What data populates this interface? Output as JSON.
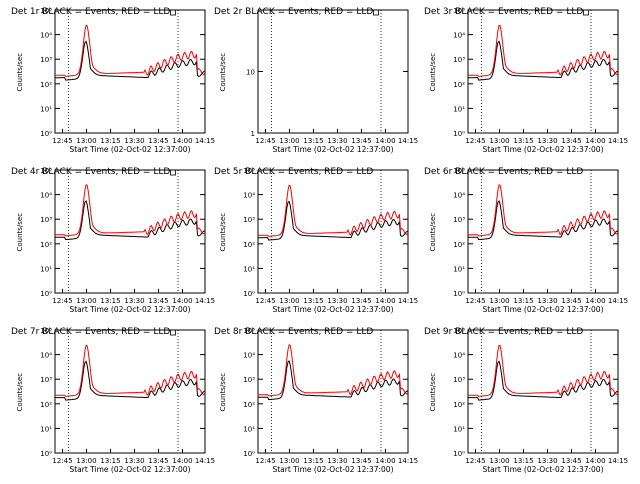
{
  "chart_data": [
    {
      "type": "line",
      "title": "Det 1r BLACK = Events, RED = LLD",
      "xlabel": "Start Time (02-Oct-02 12:37:00)",
      "ylabel": "Counts/sec",
      "y_scale": "log",
      "ylim": [
        1,
        100000
      ],
      "y_ticks": [
        "10⁰",
        "10¹",
        "10²",
        "10³",
        "10⁴",
        "10⁵"
      ],
      "x_ticks": [
        "12:45",
        "13:00",
        "13:15",
        "13:30",
        "13:45",
        "14:00",
        "14:15"
      ],
      "has_data": true,
      "legend_marker": true,
      "series": [
        {
          "color": "#000000",
          "kind": "events"
        },
        {
          "color": "#ff0000",
          "kind": "lld"
        }
      ]
    },
    {
      "type": "line",
      "title": "Det 2r BLACK = Events, RED = LLD",
      "xlabel": "Start Time (02-Oct-02 12:37:00)",
      "ylabel": "Counts/sec",
      "y_scale": "log",
      "ylim": [
        1,
        100
      ],
      "y_ticks": [
        "1",
        "10"
      ],
      "x_ticks": [
        "12:45",
        "13:00",
        "13:15",
        "13:30",
        "13:45",
        "14:00",
        "14:15"
      ],
      "has_data": false,
      "legend_marker": true,
      "series": []
    },
    {
      "type": "line",
      "title": "Det 3r BLACK = Events, RED = LLD",
      "xlabel": "Start Time (02-Oct-02 12:37:00)",
      "ylabel": "Counts/sec",
      "y_scale": "log",
      "ylim": [
        1,
        100000
      ],
      "y_ticks": [
        "10⁰",
        "10¹",
        "10²",
        "10³",
        "10⁴",
        "10⁵"
      ],
      "x_ticks": [
        "12:45",
        "13:00",
        "13:15",
        "13:30",
        "13:45",
        "14:00",
        "14:15"
      ],
      "has_data": true,
      "legend_marker": true,
      "series": [
        {
          "color": "#000000",
          "kind": "events"
        },
        {
          "color": "#ff0000",
          "kind": "lld"
        }
      ]
    },
    {
      "type": "line",
      "title": "Det 4r BLACK = Events, RED = LLD",
      "xlabel": "Start Time (02-Oct-02 12:37:00)",
      "ylabel": "Counts/sec",
      "y_scale": "log",
      "ylim": [
        1,
        100000
      ],
      "y_ticks": [
        "10⁰",
        "10¹",
        "10²",
        "10³",
        "10⁴",
        "10⁵"
      ],
      "x_ticks": [
        "12:45",
        "13:00",
        "13:15",
        "13:30",
        "13:45",
        "14:00",
        "14:15"
      ],
      "has_data": true,
      "legend_marker": true,
      "series": [
        {
          "color": "#000000",
          "kind": "events"
        },
        {
          "color": "#ff0000",
          "kind": "lld"
        }
      ]
    },
    {
      "type": "line",
      "title": "Det 5r BLACK = Events, RED = LLD",
      "xlabel": "Start Time (02-Oct-02 12:37:00)",
      "ylabel": "Counts/sec",
      "y_scale": "log",
      "ylim": [
        1,
        100000
      ],
      "y_ticks": [
        "10⁰",
        "10¹",
        "10²",
        "10³",
        "10⁴",
        "10⁵"
      ],
      "x_ticks": [
        "12:45",
        "13:00",
        "13:15",
        "13:30",
        "13:45",
        "14:00",
        "14:15"
      ],
      "has_data": true,
      "legend_marker": false,
      "series": [
        {
          "color": "#000000",
          "kind": "events"
        },
        {
          "color": "#ff0000",
          "kind": "lld"
        }
      ]
    },
    {
      "type": "line",
      "title": "Det 6r BLACK = Events, RED = LLD",
      "xlabel": "Start Time (02-Oct-02 12:37:00)",
      "ylabel": "Counts/sec",
      "y_scale": "log",
      "ylim": [
        1,
        100000
      ],
      "y_ticks": [
        "10⁰",
        "10¹",
        "10²",
        "10³",
        "10⁴",
        "10⁵"
      ],
      "x_ticks": [
        "12:45",
        "13:00",
        "13:15",
        "13:30",
        "13:45",
        "14:00",
        "14:15"
      ],
      "has_data": true,
      "legend_marker": false,
      "series": [
        {
          "color": "#000000",
          "kind": "events"
        },
        {
          "color": "#ff0000",
          "kind": "lld"
        }
      ]
    },
    {
      "type": "line",
      "title": "Det 7r BLACK = Events, RED = LLD",
      "xlabel": "Start Time (02-Oct-02 12:37:00)",
      "ylabel": "Counts/sec",
      "y_scale": "log",
      "ylim": [
        1,
        100000
      ],
      "y_ticks": [
        "10⁰",
        "10¹",
        "10²",
        "10³",
        "10⁴",
        "10⁵"
      ],
      "x_ticks": [
        "12:45",
        "13:00",
        "13:15",
        "13:30",
        "13:45",
        "14:00",
        "14:15"
      ],
      "has_data": true,
      "legend_marker": true,
      "series": [
        {
          "color": "#000000",
          "kind": "events"
        },
        {
          "color": "#ff0000",
          "kind": "lld"
        }
      ]
    },
    {
      "type": "line",
      "title": "Det 8r BLACK = Events, RED = LLD",
      "xlabel": "Start Time (02-Oct-02 12:37:00)",
      "ylabel": "Counts/sec",
      "y_scale": "log",
      "ylim": [
        1,
        100000
      ],
      "y_ticks": [
        "10⁰",
        "10¹",
        "10²",
        "10³",
        "10⁴",
        "10⁵"
      ],
      "x_ticks": [
        "12:45",
        "13:00",
        "13:15",
        "13:30",
        "13:45",
        "14:00",
        "14:15"
      ],
      "has_data": true,
      "legend_marker": false,
      "series": [
        {
          "color": "#000000",
          "kind": "events"
        },
        {
          "color": "#ff0000",
          "kind": "lld"
        }
      ]
    },
    {
      "type": "line",
      "title": "Det 9r BLACK = Events, RED = LLD",
      "xlabel": "Start Time (02-Oct-02 12:37:00)",
      "ylabel": "Counts/sec",
      "y_scale": "log",
      "ylim": [
        1,
        100000
      ],
      "y_ticks": [
        "10⁰",
        "10¹",
        "10²",
        "10³",
        "10⁴",
        "10⁵"
      ],
      "x_ticks": [
        "12:45",
        "13:00",
        "13:15",
        "13:30",
        "13:45",
        "14:00",
        "14:15"
      ],
      "has_data": true,
      "legend_marker": false,
      "series": [
        {
          "color": "#000000",
          "kind": "events"
        },
        {
          "color": "#ff0000",
          "kind": "lld"
        }
      ]
    }
  ]
}
